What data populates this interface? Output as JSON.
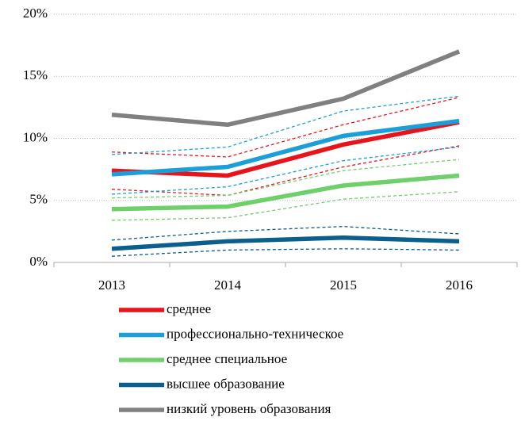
{
  "chart_data": {
    "type": "line",
    "categories": [
      "2013",
      "2014",
      "2015",
      "2016"
    ],
    "ylim": [
      0,
      20
    ],
    "yticks": [
      {
        "value": 0,
        "label": "0%"
      },
      {
        "value": 5,
        "label": "5%"
      },
      {
        "value": 10,
        "label": "10%"
      },
      {
        "value": 15,
        "label": "15%"
      },
      {
        "value": 20,
        "label": "20%"
      }
    ],
    "grid": true,
    "legend": "bottom",
    "series": [
      {
        "name": "среднее",
        "color": "#e8141b",
        "values": [
          7.4,
          7.0,
          9.5,
          11.3
        ],
        "lower": [
          5.9,
          5.4,
          7.7,
          9.4
        ],
        "upper": [
          8.9,
          8.5,
          11.1,
          13.3
        ]
      },
      {
        "name": "профессионально-техническое",
        "color": "#1a9fd8",
        "values": [
          7.1,
          7.7,
          10.2,
          11.4
        ],
        "lower": [
          5.5,
          6.1,
          8.2,
          9.3
        ],
        "upper": [
          8.7,
          9.3,
          12.2,
          13.4
        ]
      },
      {
        "name": "среднее специальное",
        "color": "#6fcf6a",
        "values": [
          4.3,
          4.5,
          6.2,
          7.0
        ],
        "lower": [
          3.4,
          3.6,
          5.1,
          5.7
        ],
        "upper": [
          5.2,
          5.4,
          7.4,
          8.3
        ]
      },
      {
        "name": "высшее образование",
        "color": "#0a5f8c",
        "values": [
          1.1,
          1.7,
          2.0,
          1.7
        ],
        "lower": [
          0.5,
          1.0,
          1.1,
          1.0
        ],
        "upper": [
          1.8,
          2.5,
          2.9,
          2.3
        ]
      },
      {
        "name": "низкий уровень образования",
        "color": "#808080",
        "values": [
          11.9,
          11.1,
          13.2,
          17.0
        ]
      }
    ]
  }
}
